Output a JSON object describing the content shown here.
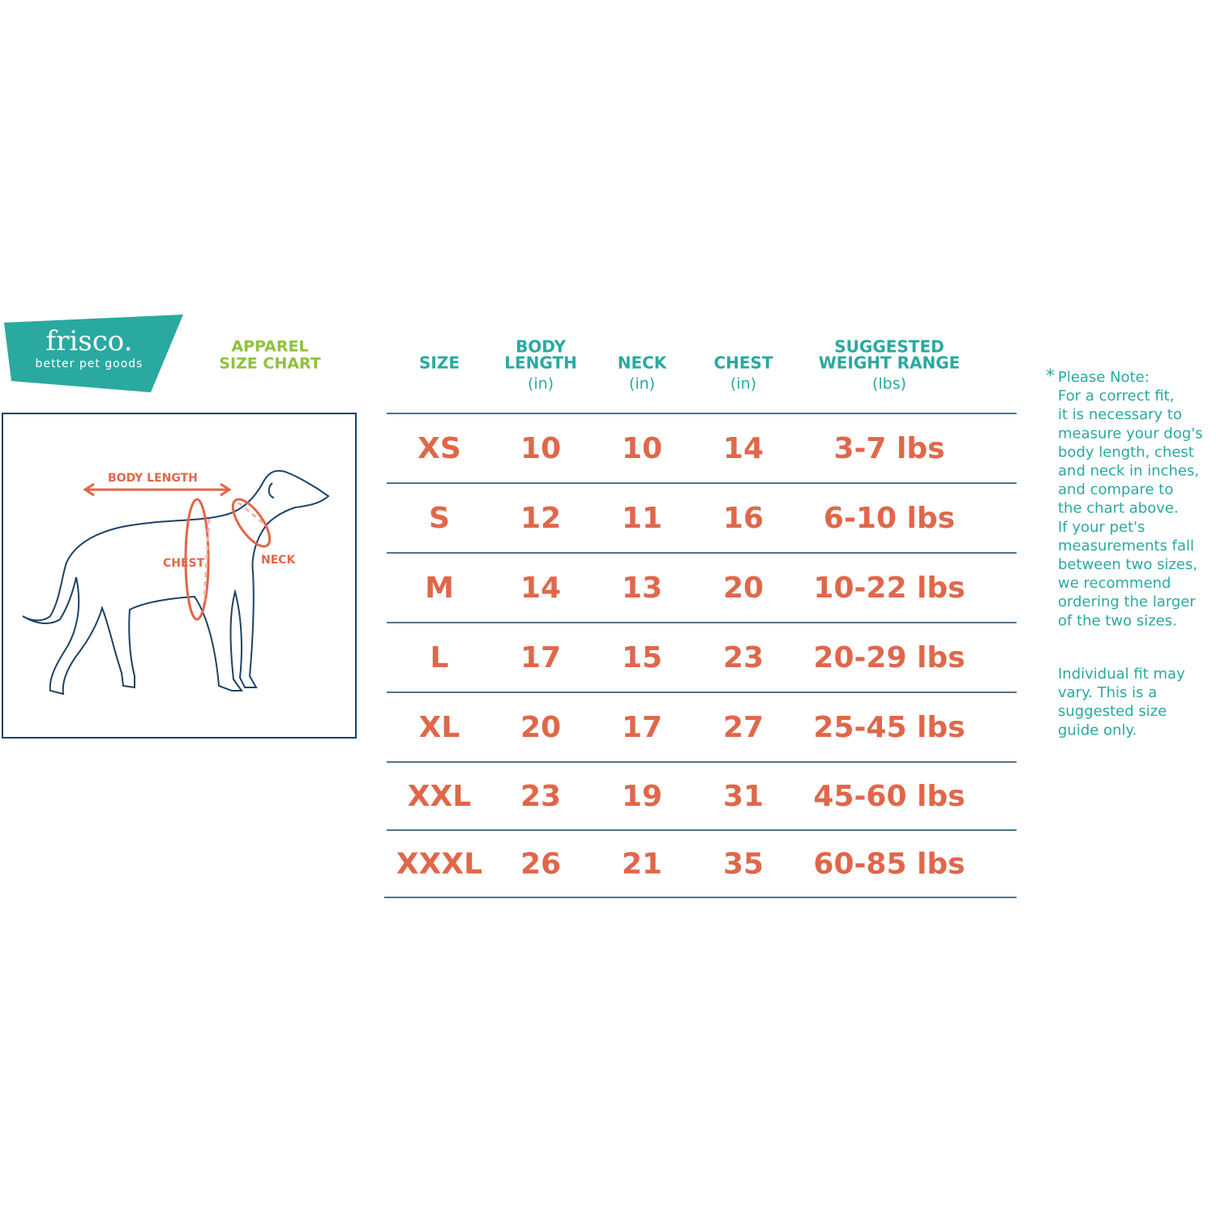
{
  "brand": {
    "name": "frisco.",
    "tagline": "better pet goods"
  },
  "title": [
    "APPAREL",
    "SIZE CHART"
  ],
  "diagram": {
    "body_length": "BODY LENGTH",
    "chest": "CHEST",
    "neck": "NECK"
  },
  "table": {
    "headers": [
      {
        "lines": [
          "SIZE"
        ]
      },
      {
        "lines": [
          "BODY",
          "LENGTH"
        ],
        "unit": "(in)"
      },
      {
        "lines": [
          "NECK"
        ],
        "unit": "(in)"
      },
      {
        "lines": [
          "CHEST"
        ],
        "unit": "(in)"
      },
      {
        "lines": [
          "SUGGESTED",
          "WEIGHT RANGE"
        ],
        "unit": "(lbs)"
      }
    ],
    "rows": [
      [
        "XS",
        10,
        10,
        14,
        "3-7 lbs"
      ],
      [
        "S",
        12,
        11,
        16,
        "6-10 lbs"
      ],
      [
        "M",
        14,
        13,
        20,
        "10-22 lbs"
      ],
      [
        "L",
        17,
        15,
        23,
        "20-29 lbs"
      ],
      [
        "XL",
        20,
        17,
        27,
        "25-45 lbs"
      ],
      [
        "XXL",
        23,
        19,
        31,
        "45-60 lbs"
      ],
      [
        "XXXL",
        26,
        21,
        35,
        "60-85 lbs"
      ]
    ]
  },
  "note": {
    "asterisk": "*",
    "lines": [
      "Please Note:",
      "For a correct fit,",
      "it is necessary to",
      "measure your dog's",
      "body length, chest",
      "and neck in inches,",
      "and compare to",
      "the chart above.",
      "If your pet's",
      "measurements fall",
      "between two sizes,",
      "we recommend",
      "ordering the larger",
      "of the two sizes."
    ],
    "disclaimer": [
      "Individual fit may",
      "vary. This is a",
      "suggested size",
      "guide only."
    ]
  }
}
